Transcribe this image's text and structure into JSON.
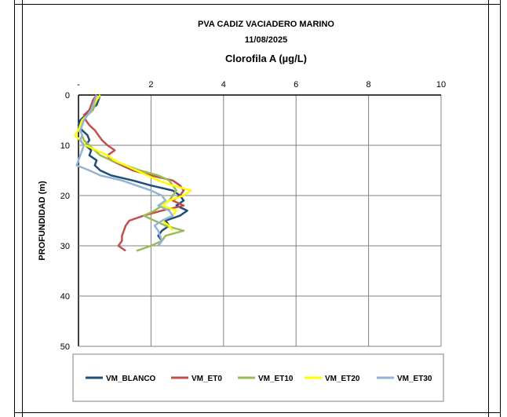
{
  "chart_data": {
    "type": "line",
    "title_line1": "PVA CADIZ VACIADERO MARINO",
    "title_line2": "11/08/2025",
    "subtitle": "Clorofila A (µg/L)",
    "ylabel": "PROFUNDIDAD (m)",
    "xlim": [
      0,
      10
    ],
    "ylim": [
      0,
      50
    ],
    "y_inverted": true,
    "x_ticks": [
      "-",
      "2",
      "4",
      "6",
      "8",
      "10"
    ],
    "y_ticks": [
      "0",
      "10",
      "20",
      "30",
      "40",
      "50"
    ],
    "grid": true,
    "legend_position": "bottom",
    "series": [
      {
        "name": "VM_BLANCO",
        "color": "#1f4e79",
        "points": [
          [
            0.6,
            0
          ],
          [
            0.55,
            1
          ],
          [
            0.5,
            2
          ],
          [
            0.3,
            3
          ],
          [
            0.2,
            4
          ],
          [
            0.05,
            5
          ],
          [
            0,
            6
          ],
          [
            0.1,
            7
          ],
          [
            0.25,
            8
          ],
          [
            0.3,
            9
          ],
          [
            0.2,
            10
          ],
          [
            0.35,
            11
          ],
          [
            0.3,
            12
          ],
          [
            0.5,
            13
          ],
          [
            0.45,
            14
          ],
          [
            0.6,
            15
          ],
          [
            0.9,
            16
          ],
          [
            1.5,
            17
          ],
          [
            2.0,
            18
          ],
          [
            2.6,
            19
          ],
          [
            2.8,
            20
          ],
          [
            2.9,
            21
          ],
          [
            2.7,
            22
          ],
          [
            3.0,
            23
          ],
          [
            2.8,
            24
          ],
          [
            2.4,
            25
          ],
          [
            2.5,
            26
          ],
          [
            2.3,
            27
          ],
          [
            2.2,
            28
          ],
          [
            2.3,
            29
          ],
          [
            2.2,
            30
          ]
        ]
      },
      {
        "name": "VM_ET0",
        "color": "#c0504d",
        "points": [
          [
            0.5,
            0
          ],
          [
            0.4,
            1
          ],
          [
            0.35,
            2
          ],
          [
            0.3,
            3
          ],
          [
            0.15,
            4
          ],
          [
            0.2,
            5
          ],
          [
            0.3,
            6
          ],
          [
            0.45,
            7
          ],
          [
            0.55,
            8
          ],
          [
            0.65,
            9
          ],
          [
            0.8,
            10
          ],
          [
            1.0,
            11
          ],
          [
            0.8,
            12
          ],
          [
            0.9,
            13
          ],
          [
            1.2,
            14
          ],
          [
            1.5,
            15
          ],
          [
            2.0,
            16
          ],
          [
            2.6,
            17
          ],
          [
            2.8,
            18
          ],
          [
            2.9,
            19
          ],
          [
            2.8,
            20
          ],
          [
            2.6,
            21
          ],
          [
            2.9,
            22
          ],
          [
            2.3,
            23
          ],
          [
            1.8,
            24
          ],
          [
            1.4,
            25
          ],
          [
            1.3,
            26
          ],
          [
            1.25,
            27
          ],
          [
            1.2,
            28
          ],
          [
            1.2,
            29
          ],
          [
            1.1,
            30
          ],
          [
            1.3,
            31
          ]
        ]
      },
      {
        "name": "VM_ET10",
        "color": "#9bbb59",
        "points": [
          [
            0.6,
            0
          ],
          [
            0.5,
            1
          ],
          [
            0.45,
            2
          ],
          [
            0.4,
            3
          ],
          [
            0.25,
            4
          ],
          [
            0.15,
            5
          ],
          [
            0.1,
            6
          ],
          [
            0.05,
            7
          ],
          [
            0.1,
            8
          ],
          [
            0.15,
            9
          ],
          [
            0.3,
            10
          ],
          [
            0.45,
            11
          ],
          [
            0.6,
            12
          ],
          [
            0.9,
            13
          ],
          [
            1.3,
            14
          ],
          [
            1.7,
            15
          ],
          [
            2.2,
            16
          ],
          [
            2.5,
            17
          ],
          [
            2.6,
            18
          ],
          [
            2.7,
            19
          ],
          [
            2.6,
            20
          ],
          [
            2.5,
            21
          ],
          [
            2.3,
            22
          ],
          [
            2.1,
            23
          ],
          [
            1.8,
            24
          ],
          [
            2.1,
            25
          ],
          [
            2.4,
            26
          ],
          [
            2.9,
            27
          ],
          [
            2.4,
            28
          ],
          [
            2.3,
            29
          ],
          [
            2.0,
            30
          ],
          [
            1.6,
            31
          ]
        ]
      },
      {
        "name": "VM_ET20",
        "color": "#ffff00",
        "points": [
          [
            0.6,
            0
          ],
          [
            0.5,
            1
          ],
          [
            0.4,
            2
          ],
          [
            0.35,
            3
          ],
          [
            0.25,
            4
          ],
          [
            0.1,
            5
          ],
          [
            0.05,
            6
          ],
          [
            0,
            7
          ],
          [
            -0.1,
            8
          ],
          [
            0.05,
            9
          ],
          [
            0.2,
            10
          ],
          [
            0.5,
            11
          ],
          [
            0.8,
            12
          ],
          [
            1.0,
            13
          ],
          [
            1.3,
            14
          ],
          [
            1.6,
            15
          ],
          [
            1.9,
            16
          ],
          [
            2.2,
            17
          ],
          [
            2.6,
            18
          ],
          [
            3.1,
            19
          ],
          [
            2.9,
            20
          ],
          [
            2.5,
            21
          ],
          [
            2.3,
            22
          ],
          [
            2.7,
            23
          ],
          [
            2.6,
            24
          ],
          [
            2.3,
            25
          ],
          [
            2.5,
            26
          ],
          [
            2.6,
            27
          ]
        ]
      },
      {
        "name": "VM_ET30",
        "color": "#95b3d7",
        "points": [
          [
            0.5,
            0
          ],
          [
            0.45,
            1
          ],
          [
            0.4,
            2
          ],
          [
            0.35,
            3
          ],
          [
            0.25,
            4
          ],
          [
            0.15,
            5
          ],
          [
            0.1,
            6
          ],
          [
            0.05,
            7
          ],
          [
            0.1,
            8
          ],
          [
            0.05,
            9
          ],
          [
            0.15,
            10
          ],
          [
            0.1,
            11
          ],
          [
            0.05,
            12
          ],
          [
            0,
            13
          ],
          [
            -0.05,
            14
          ],
          [
            0.3,
            15
          ],
          [
            0.6,
            16
          ],
          [
            1.2,
            17
          ],
          [
            1.6,
            18
          ],
          [
            2.0,
            19
          ],
          [
            2.3,
            20
          ],
          [
            2.4,
            21
          ],
          [
            2.2,
            22
          ],
          [
            2.5,
            23
          ],
          [
            2.6,
            24
          ],
          [
            2.3,
            25
          ],
          [
            2.1,
            26
          ],
          [
            2.2,
            27
          ],
          [
            2.25,
            28
          ],
          [
            2.3,
            29
          ],
          [
            2.2,
            30
          ]
        ]
      }
    ]
  }
}
